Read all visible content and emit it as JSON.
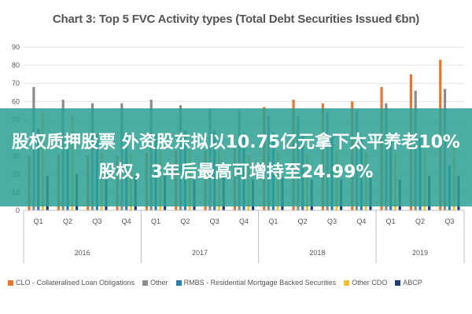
{
  "chart_data": {
    "type": "bar",
    "title": "Chart 3: Top 5 FVC Activity types (Total Debt Securities Issued €bn)",
    "categories": [
      "Q1",
      "Q2",
      "Q3",
      "Q4",
      "Q1",
      "Q2",
      "Q3",
      "Q4",
      "Q1",
      "Q2",
      "Q3",
      "Q4",
      "Q1",
      "Q2",
      "Q3"
    ],
    "groups": [
      {
        "label": "2016",
        "count": 4
      },
      {
        "label": "2017",
        "count": 4
      },
      {
        "label": "2018",
        "count": 4
      },
      {
        "label": "2019",
        "count": 3
      }
    ],
    "ylim": [
      0,
      90
    ],
    "yticks": [
      0,
      10,
      20,
      30,
      40,
      50,
      60,
      70,
      80,
      90
    ],
    "grid": true,
    "legend_position": "bottom",
    "series": [
      {
        "name": "CLO - Collateralised Loan Obligations",
        "color": "#e8772e",
        "values": [
          30,
          31,
          30,
          30,
          32,
          33,
          33,
          34,
          57,
          61,
          59,
          60,
          68,
          75,
          83
        ]
      },
      {
        "name": "Other",
        "color": "#8c8c8c",
        "values": [
          68,
          61,
          59,
          59,
          61,
          58,
          56,
          55,
          52,
          52,
          54,
          55,
          59,
          66,
          67
        ]
      },
      {
        "name": "RMBS - Residential Mortgage Backed Securities",
        "color": "#2a7fb5",
        "values": [
          45,
          43,
          42,
          42,
          42,
          44,
          44,
          43,
          43,
          42,
          41,
          41,
          41,
          40,
          25
        ]
      },
      {
        "name": "Other CDO",
        "color": "#f1c232",
        "values": [
          54,
          53,
          32,
          31,
          33,
          34,
          33,
          30,
          32,
          31,
          33,
          32,
          31,
          33,
          35
        ]
      },
      {
        "name": "ABCP",
        "color": "#1f3e7a",
        "values": [
          19,
          20,
          20,
          19,
          19,
          18,
          18,
          17,
          18,
          17,
          17,
          18,
          17,
          19,
          19
        ]
      }
    ]
  },
  "overlay": {
    "text": "股权质押股票 外资股东拟以10.75亿元拿下太平养老10%股权，3年后最高可增持至24.99%"
  }
}
